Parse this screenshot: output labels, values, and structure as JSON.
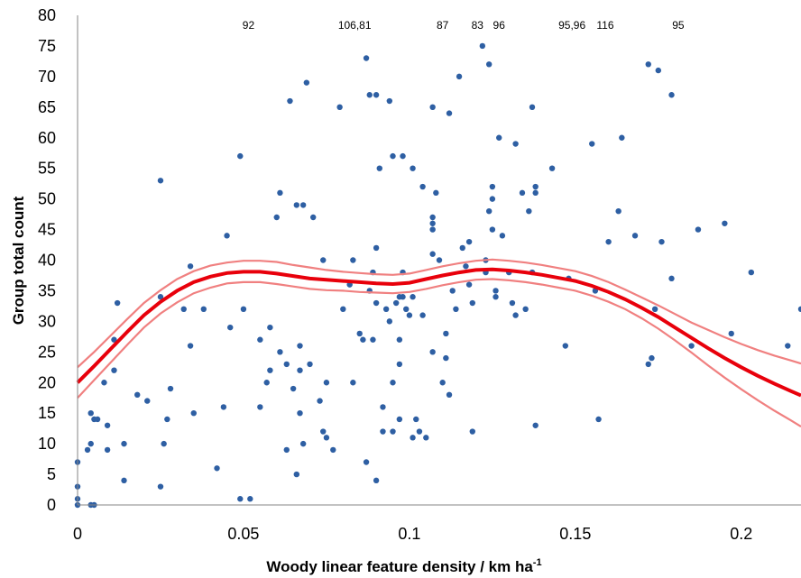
{
  "chart_data": {
    "type": "scatter",
    "xlabel": "Woody linear feature density / km ha",
    "xlabel_sup": "-1",
    "ylabel": "Group total count",
    "xlim": [
      0,
      0.218
    ],
    "ylim": [
      0,
      80
    ],
    "x_ticks": [
      0,
      0.05,
      0.1,
      0.15,
      0.2
    ],
    "x_tick_labels": [
      "0",
      "0.05",
      "0.1",
      "0.15",
      "0.2"
    ],
    "y_ticks": [
      0,
      5,
      10,
      15,
      20,
      25,
      30,
      35,
      40,
      45,
      50,
      55,
      60,
      65,
      70,
      75,
      80
    ],
    "y_tick_labels": [
      "0",
      "5",
      "10",
      "15",
      "20",
      "25",
      "30",
      "35",
      "40",
      "45",
      "50",
      "55",
      "60",
      "65",
      "70",
      "75",
      "80"
    ],
    "grid": false,
    "point_color": "#2e5fa3",
    "fit_color": "#e8000b",
    "ci_color": "#f08080",
    "annotations": [
      {
        "text": "92",
        "x": 0.0515
      },
      {
        "text": "106,81",
        "x": 0.0835
      },
      {
        "text": "87",
        "x": 0.11
      },
      {
        "text": "83",
        "x": 0.1205
      },
      {
        "text": "96",
        "x": 0.127
      },
      {
        "text": "95,96",
        "x": 0.149
      },
      {
        "text": "116",
        "x": 0.159
      },
      {
        "text": "95",
        "x": 0.181
      }
    ],
    "points": [
      [
        0,
        7
      ],
      [
        0,
        3
      ],
      [
        0,
        1
      ],
      [
        0,
        0
      ],
      [
        0.004,
        0
      ],
      [
        0.005,
        0
      ],
      [
        0.003,
        9
      ],
      [
        0.004,
        10
      ],
      [
        0.004,
        15
      ],
      [
        0.005,
        14
      ],
      [
        0.006,
        14
      ],
      [
        0.008,
        20
      ],
      [
        0.009,
        13
      ],
      [
        0.009,
        9
      ],
      [
        0.011,
        27
      ],
      [
        0.011,
        22
      ],
      [
        0.012,
        33
      ],
      [
        0.014,
        10
      ],
      [
        0.014,
        4
      ],
      [
        0.018,
        18
      ],
      [
        0.021,
        17
      ],
      [
        0.025,
        53
      ],
      [
        0.025,
        34
      ],
      [
        0.025,
        3
      ],
      [
        0.026,
        10
      ],
      [
        0.027,
        14
      ],
      [
        0.028,
        19
      ],
      [
        0.032,
        32
      ],
      [
        0.034,
        26
      ],
      [
        0.034,
        39
      ],
      [
        0.035,
        15
      ],
      [
        0.038,
        32
      ],
      [
        0.042,
        6
      ],
      [
        0.044,
        16
      ],
      [
        0.045,
        44
      ],
      [
        0.046,
        29
      ],
      [
        0.049,
        57
      ],
      [
        0.05,
        32
      ],
      [
        0.049,
        1
      ],
      [
        0.052,
        1
      ],
      [
        0.055,
        27
      ],
      [
        0.055,
        16
      ],
      [
        0.057,
        20
      ],
      [
        0.058,
        22
      ],
      [
        0.058,
        29
      ],
      [
        0.06,
        47
      ],
      [
        0.061,
        51
      ],
      [
        0.061,
        25
      ],
      [
        0.063,
        23
      ],
      [
        0.063,
        9
      ],
      [
        0.064,
        66
      ],
      [
        0.065,
        19
      ],
      [
        0.066,
        49
      ],
      [
        0.066,
        5
      ],
      [
        0.067,
        15
      ],
      [
        0.067,
        26
      ],
      [
        0.067,
        22
      ],
      [
        0.068,
        10
      ],
      [
        0.068,
        49
      ],
      [
        0.069,
        69
      ],
      [
        0.07,
        23
      ],
      [
        0.071,
        47
      ],
      [
        0.073,
        17
      ],
      [
        0.074,
        40
      ],
      [
        0.074,
        12
      ],
      [
        0.075,
        11
      ],
      [
        0.075,
        20
      ],
      [
        0.077,
        9
      ],
      [
        0.079,
        65
      ],
      [
        0.08,
        32
      ],
      [
        0.082,
        36
      ],
      [
        0.083,
        40
      ],
      [
        0.083,
        20
      ],
      [
        0.085,
        28
      ],
      [
        0.086,
        27
      ],
      [
        0.087,
        73
      ],
      [
        0.087,
        7
      ],
      [
        0.088,
        67
      ],
      [
        0.088,
        35
      ],
      [
        0.089,
        38
      ],
      [
        0.089,
        27
      ],
      [
        0.09,
        67
      ],
      [
        0.09,
        42
      ],
      [
        0.09,
        33
      ],
      [
        0.09,
        4
      ],
      [
        0.091,
        55
      ],
      [
        0.092,
        12
      ],
      [
        0.092,
        16
      ],
      [
        0.093,
        32
      ],
      [
        0.094,
        66
      ],
      [
        0.094,
        30
      ],
      [
        0.095,
        57
      ],
      [
        0.095,
        20
      ],
      [
        0.095,
        12
      ],
      [
        0.096,
        33
      ],
      [
        0.097,
        27
      ],
      [
        0.097,
        14
      ],
      [
        0.097,
        34
      ],
      [
        0.097,
        23
      ],
      [
        0.098,
        57
      ],
      [
        0.098,
        38
      ],
      [
        0.098,
        34
      ],
      [
        0.099,
        32
      ],
      [
        0.1,
        31
      ],
      [
        0.101,
        55
      ],
      [
        0.101,
        34
      ],
      [
        0.101,
        11
      ],
      [
        0.102,
        14
      ],
      [
        0.103,
        12
      ],
      [
        0.104,
        52
      ],
      [
        0.104,
        31
      ],
      [
        0.105,
        11
      ],
      [
        0.107,
        47
      ],
      [
        0.107,
        46
      ],
      [
        0.107,
        45
      ],
      [
        0.107,
        41
      ],
      [
        0.107,
        65
      ],
      [
        0.107,
        25
      ],
      [
        0.108,
        51
      ],
      [
        0.109,
        40
      ],
      [
        0.11,
        20
      ],
      [
        0.111,
        24
      ],
      [
        0.111,
        28
      ],
      [
        0.112,
        64
      ],
      [
        0.112,
        18
      ],
      [
        0.113,
        35
      ],
      [
        0.114,
        32
      ],
      [
        0.115,
        70
      ],
      [
        0.116,
        42
      ],
      [
        0.117,
        39
      ],
      [
        0.118,
        43
      ],
      [
        0.118,
        36
      ],
      [
        0.119,
        33
      ],
      [
        0.119,
        12
      ],
      [
        0.122,
        75
      ],
      [
        0.123,
        38
      ],
      [
        0.123,
        40
      ],
      [
        0.124,
        72
      ],
      [
        0.124,
        48
      ],
      [
        0.125,
        52
      ],
      [
        0.125,
        50
      ],
      [
        0.125,
        45
      ],
      [
        0.126,
        35
      ],
      [
        0.126,
        34
      ],
      [
        0.127,
        60
      ],
      [
        0.128,
        44
      ],
      [
        0.13,
        38
      ],
      [
        0.131,
        33
      ],
      [
        0.132,
        59
      ],
      [
        0.132,
        31
      ],
      [
        0.134,
        51
      ],
      [
        0.135,
        32
      ],
      [
        0.136,
        48
      ],
      [
        0.137,
        65
      ],
      [
        0.137,
        38
      ],
      [
        0.138,
        52
      ],
      [
        0.138,
        51
      ],
      [
        0.138,
        13
      ],
      [
        0.143,
        55
      ],
      [
        0.147,
        26
      ],
      [
        0.148,
        37
      ],
      [
        0.155,
        59
      ],
      [
        0.156,
        35
      ],
      [
        0.157,
        14
      ],
      [
        0.16,
        43
      ],
      [
        0.163,
        48
      ],
      [
        0.164,
        60
      ],
      [
        0.168,
        44
      ],
      [
        0.172,
        23
      ],
      [
        0.173,
        24
      ],
      [
        0.172,
        72
      ],
      [
        0.174,
        32
      ],
      [
        0.175,
        71
      ],
      [
        0.176,
        43
      ],
      [
        0.179,
        67
      ],
      [
        0.179,
        37
      ],
      [
        0.185,
        26
      ],
      [
        0.187,
        45
      ],
      [
        0.195,
        46
      ],
      [
        0.197,
        28
      ],
      [
        0.203,
        38
      ],
      [
        0.214,
        26
      ],
      [
        0.218,
        32
      ]
    ],
    "fit_curve": [
      [
        0,
        20
      ],
      [
        0.005,
        22.7
      ],
      [
        0.01,
        25.5
      ],
      [
        0.015,
        28.3
      ],
      [
        0.02,
        31
      ],
      [
        0.025,
        33.2
      ],
      [
        0.03,
        35
      ],
      [
        0.035,
        36.4
      ],
      [
        0.04,
        37.3
      ],
      [
        0.045,
        37.9
      ],
      [
        0.05,
        38.1
      ],
      [
        0.055,
        38.1
      ],
      [
        0.06,
        37.8
      ],
      [
        0.065,
        37.4
      ],
      [
        0.07,
        37
      ],
      [
        0.075,
        36.8
      ],
      [
        0.08,
        36.6
      ],
      [
        0.085,
        36.4
      ],
      [
        0.09,
        36.2
      ],
      [
        0.095,
        36.1
      ],
      [
        0.1,
        36.3
      ],
      [
        0.105,
        36.9
      ],
      [
        0.11,
        37.5
      ],
      [
        0.115,
        38
      ],
      [
        0.12,
        38.4
      ],
      [
        0.125,
        38.5
      ],
      [
        0.13,
        38.3
      ],
      [
        0.135,
        38
      ],
      [
        0.14,
        37.6
      ],
      [
        0.145,
        37.1
      ],
      [
        0.15,
        36.6
      ],
      [
        0.155,
        35.8
      ],
      [
        0.16,
        34.8
      ],
      [
        0.165,
        33.6
      ],
      [
        0.17,
        32.2
      ],
      [
        0.175,
        30.7
      ],
      [
        0.18,
        29
      ],
      [
        0.185,
        27.3
      ],
      [
        0.19,
        25.6
      ],
      [
        0.195,
        24
      ],
      [
        0.2,
        22.5
      ],
      [
        0.205,
        21.1
      ],
      [
        0.21,
        19.8
      ],
      [
        0.215,
        18.6
      ],
      [
        0.218,
        17.9
      ]
    ],
    "ci_upper": [
      [
        0,
        22.5
      ],
      [
        0.005,
        25
      ],
      [
        0.01,
        27.7
      ],
      [
        0.015,
        30.4
      ],
      [
        0.02,
        33
      ],
      [
        0.025,
        35.1
      ],
      [
        0.03,
        36.9
      ],
      [
        0.035,
        38.2
      ],
      [
        0.04,
        39.1
      ],
      [
        0.045,
        39.6
      ],
      [
        0.05,
        39.9
      ],
      [
        0.055,
        39.9
      ],
      [
        0.06,
        39.7
      ],
      [
        0.065,
        39.2
      ],
      [
        0.07,
        38.8
      ],
      [
        0.075,
        38.4
      ],
      [
        0.08,
        38.1
      ],
      [
        0.085,
        37.9
      ],
      [
        0.09,
        37.7
      ],
      [
        0.095,
        37.6
      ],
      [
        0.1,
        37.8
      ],
      [
        0.105,
        38.4
      ],
      [
        0.11,
        39
      ],
      [
        0.115,
        39.5
      ],
      [
        0.12,
        39.9
      ],
      [
        0.125,
        40.1
      ],
      [
        0.13,
        39.9
      ],
      [
        0.135,
        39.6
      ],
      [
        0.14,
        39.2
      ],
      [
        0.145,
        38.7
      ],
      [
        0.15,
        38.2
      ],
      [
        0.155,
        37.4
      ],
      [
        0.16,
        36.4
      ],
      [
        0.165,
        35.2
      ],
      [
        0.17,
        33.9
      ],
      [
        0.175,
        32.6
      ],
      [
        0.18,
        31.2
      ],
      [
        0.185,
        29.8
      ],
      [
        0.19,
        28.6
      ],
      [
        0.195,
        27.4
      ],
      [
        0.2,
        26.3
      ],
      [
        0.205,
        25.3
      ],
      [
        0.21,
        24.4
      ],
      [
        0.215,
        23.6
      ],
      [
        0.218,
        23.1
      ]
    ],
    "ci_lower": [
      [
        0,
        17.5
      ],
      [
        0.005,
        20.4
      ],
      [
        0.01,
        23.3
      ],
      [
        0.015,
        26.2
      ],
      [
        0.02,
        29
      ],
      [
        0.025,
        31.3
      ],
      [
        0.03,
        33.1
      ],
      [
        0.035,
        34.6
      ],
      [
        0.04,
        35.5
      ],
      [
        0.045,
        36.2
      ],
      [
        0.05,
        36.4
      ],
      [
        0.055,
        36.4
      ],
      [
        0.06,
        36.1
      ],
      [
        0.065,
        35.7
      ],
      [
        0.07,
        35.3
      ],
      [
        0.075,
        35.1
      ],
      [
        0.08,
        35
      ],
      [
        0.085,
        34.8
      ],
      [
        0.09,
        34.7
      ],
      [
        0.095,
        34.6
      ],
      [
        0.1,
        34.8
      ],
      [
        0.105,
        35.3
      ],
      [
        0.11,
        35.9
      ],
      [
        0.115,
        36.4
      ],
      [
        0.12,
        36.8
      ],
      [
        0.125,
        36.9
      ],
      [
        0.13,
        36.7
      ],
      [
        0.135,
        36.4
      ],
      [
        0.14,
        36
      ],
      [
        0.145,
        35.5
      ],
      [
        0.15,
        35
      ],
      [
        0.155,
        34.2
      ],
      [
        0.16,
        33.2
      ],
      [
        0.165,
        32
      ],
      [
        0.17,
        30.5
      ],
      [
        0.175,
        28.8
      ],
      [
        0.18,
        26.9
      ],
      [
        0.185,
        24.9
      ],
      [
        0.19,
        22.8
      ],
      [
        0.195,
        20.8
      ],
      [
        0.2,
        18.9
      ],
      [
        0.205,
        17.1
      ],
      [
        0.21,
        15.4
      ],
      [
        0.215,
        13.8
      ],
      [
        0.218,
        12.8
      ]
    ]
  }
}
